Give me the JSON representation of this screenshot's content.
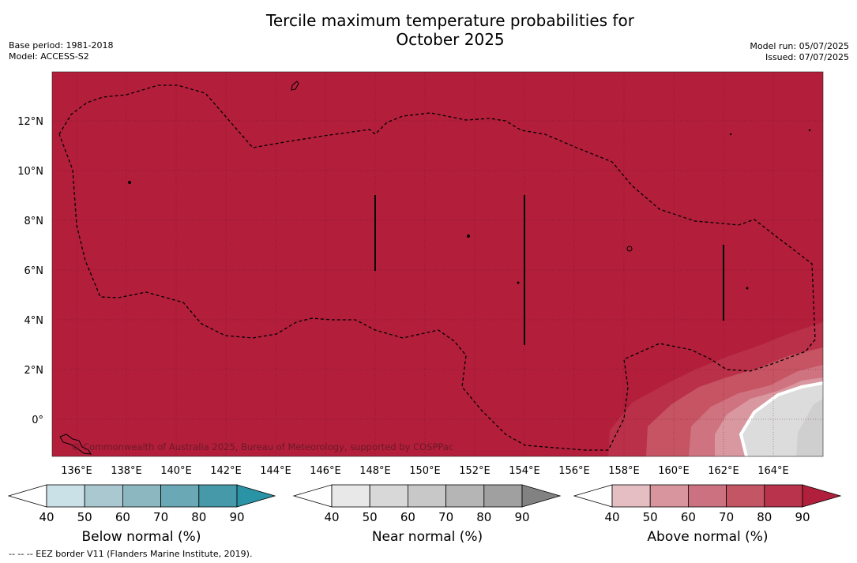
{
  "title_line1": "Tercile maximum temperature probabilities for",
  "title_line2": "October 2025",
  "base_period": "Base period: 1981-2018",
  "model": "Model: ACCESS-S2",
  "model_run": "Model run: 05/07/2025",
  "issued": "Issued: 07/07/2025",
  "copyright": "© Commonwealth of Australia 2025, Bureau of Meteorology, supported by COSPPac",
  "footnote": "--  --  -- EEZ border V11 (Flanders Marine Institute, 2019).",
  "map": {
    "lat_labels": [
      "12°N",
      "10°N",
      "8°N",
      "6°N",
      "4°N",
      "2°N",
      "0°"
    ],
    "lon_labels": [
      "136°E",
      "138°E",
      "140°E",
      "142°E",
      "144°E",
      "146°E",
      "148°E",
      "150°E",
      "152°E",
      "154°E",
      "156°E",
      "158°E",
      "160°E",
      "162°E",
      "164°E"
    ],
    "dominant_category": "Above normal",
    "dominant_probability_band": "80-90",
    "colors": {
      "above_90": "#b31e3b",
      "above_80": "#ba3048",
      "above_70": "#c65463",
      "above_60": "#cf7380",
      "above_50": "#d9979f",
      "near_60": "#cfcfcf",
      "near_50": "#dcdcdc"
    }
  },
  "colorbars": [
    {
      "title": "Below normal (%)",
      "ticks": [
        "40",
        "50",
        "60",
        "70",
        "80",
        "90"
      ],
      "colors": [
        "#c9e1e7",
        "#a9c8cf",
        "#8cb7c1",
        "#6aa8b6",
        "#4599a9",
        "#2a93a6"
      ]
    },
    {
      "title": "Near normal (%)",
      "ticks": [
        "40",
        "50",
        "60",
        "70",
        "80",
        "90"
      ],
      "colors": [
        "#e8e8e8",
        "#d8d8d8",
        "#c8c8c8",
        "#b5b5b5",
        "#a0a0a0",
        "#828282"
      ]
    },
    {
      "title": "Above normal (%)",
      "ticks": [
        "40",
        "50",
        "60",
        "70",
        "80",
        "90"
      ],
      "colors": [
        "#e4bec3",
        "#d8959d",
        "#cc7180",
        "#c35565",
        "#b8334b",
        "#b01f3c"
      ]
    }
  ]
}
